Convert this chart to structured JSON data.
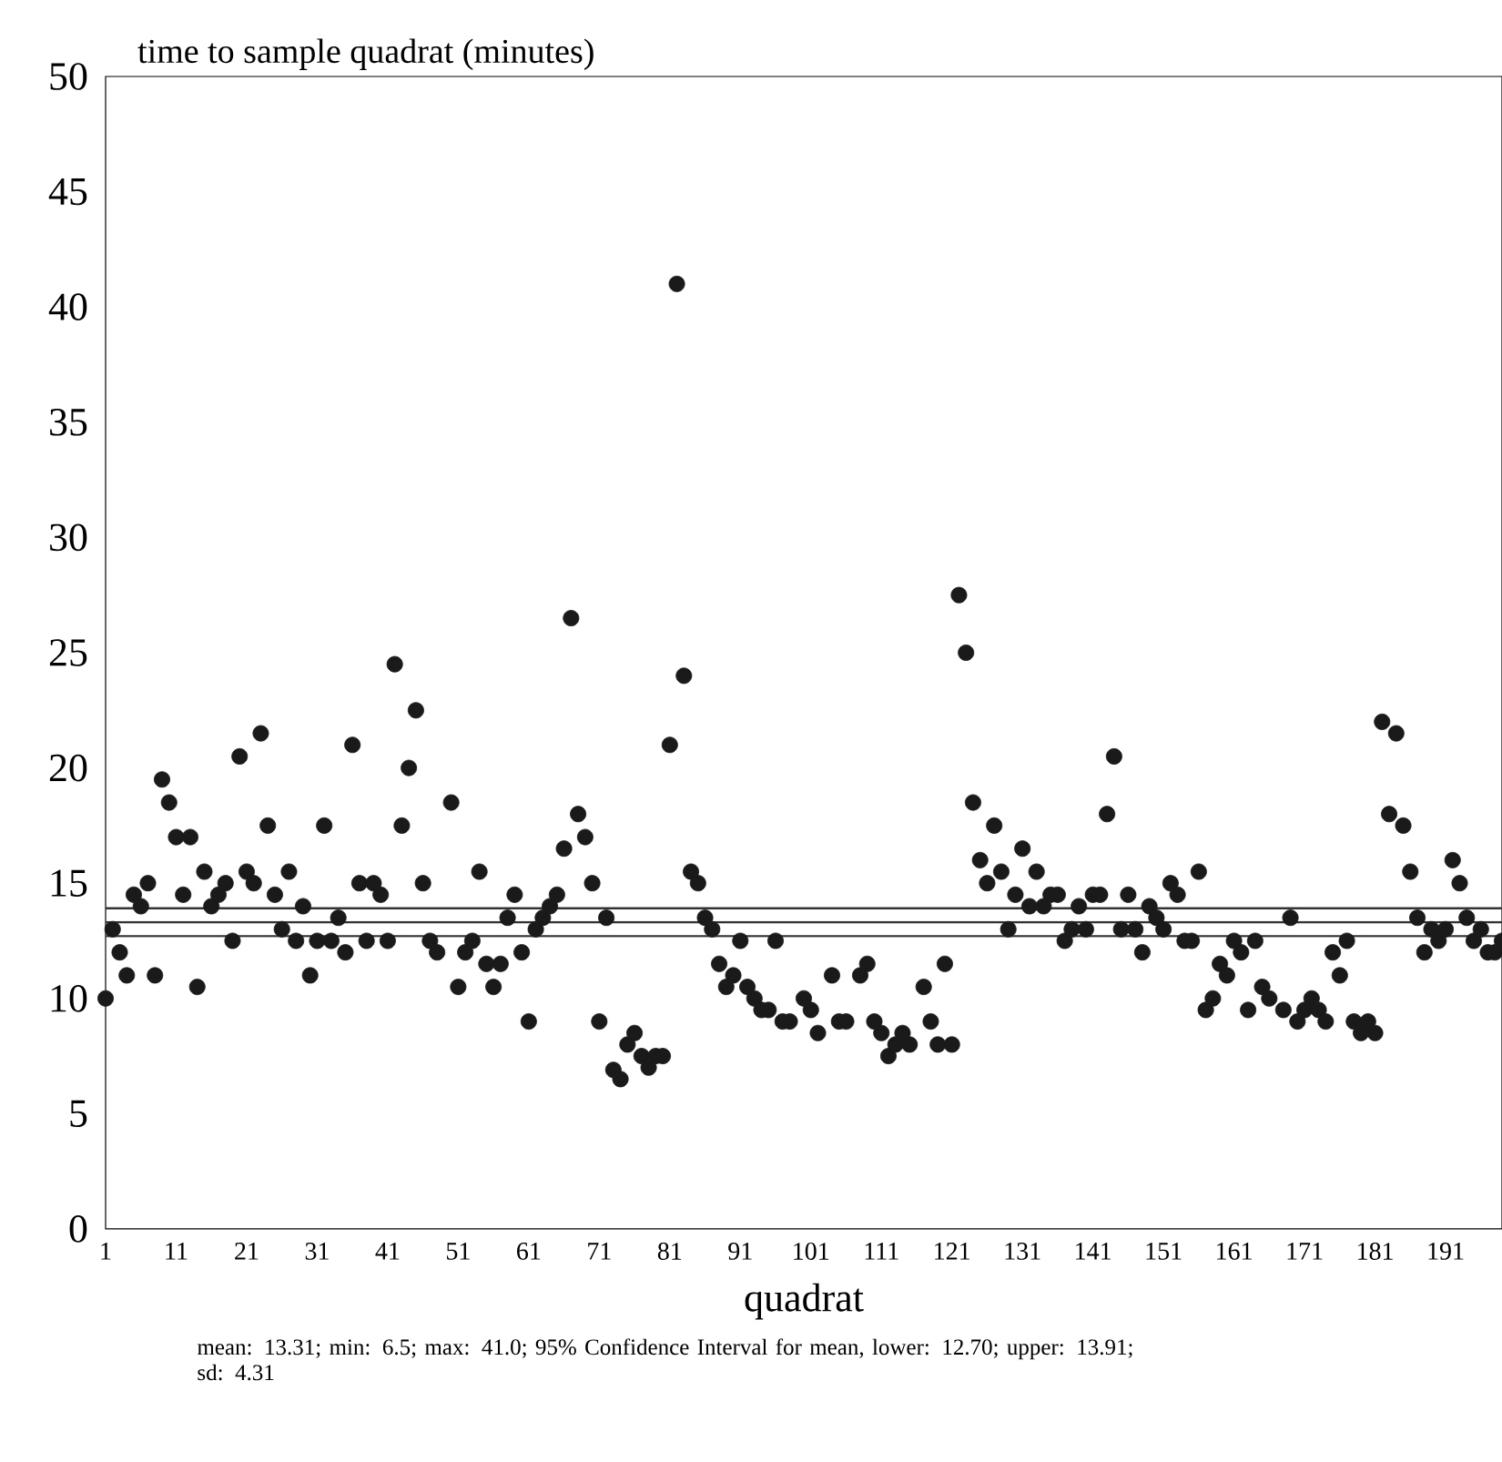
{
  "chart_data": {
    "type": "scatter",
    "ylabel": "time to sample quadrat (minutes)",
    "xlabel": "quadrat",
    "annotations": [
      "mean: 13.31; min: 6.5; max: 41.0; 95% Confidence Interval for mean, lower: 12.70; upper: 13.91; sd: 4.31"
    ],
    "xlim": [
      1,
      199
    ],
    "ylim": [
      0,
      50
    ],
    "xticks": [
      1,
      11,
      21,
      31,
      41,
      51,
      61,
      71,
      81,
      91,
      101,
      111,
      121,
      131,
      141,
      151,
      161,
      171,
      181,
      191
    ],
    "yticks": [
      0,
      5,
      10,
      15,
      20,
      25,
      30,
      35,
      40,
      45,
      50
    ],
    "marker": "circle",
    "ref_lines": [
      {
        "axis": "y",
        "value": 13.91,
        "color": "#333333"
      },
      {
        "axis": "y",
        "value": 13.31,
        "color": "#333333"
      },
      {
        "axis": "y",
        "value": 12.7,
        "color": "#333333"
      }
    ],
    "series": [
      {
        "color": "#1a1a1a",
        "x": [
          1,
          2,
          3,
          4,
          5,
          6,
          7,
          8,
          9,
          10,
          11,
          12,
          13,
          14,
          15,
          16,
          17,
          18,
          19,
          20,
          21,
          22,
          23,
          24,
          25,
          26,
          27,
          28,
          29,
          30,
          31,
          32,
          33,
          34,
          35,
          36,
          37,
          38,
          39,
          40,
          41,
          42,
          43,
          44,
          45,
          46,
          47,
          48,
          50,
          51,
          52,
          53,
          54,
          55,
          56,
          57,
          58,
          59,
          60,
          61,
          62,
          63,
          64,
          65,
          66,
          67,
          68,
          69,
          70,
          71,
          72,
          73,
          74,
          75,
          76,
          77,
          78,
          79,
          80,
          81,
          82,
          83,
          84,
          85,
          86,
          87,
          88,
          89,
          90,
          91,
          92,
          93,
          94,
          95,
          96,
          97,
          98,
          100,
          101,
          102,
          104,
          105,
          106,
          108,
          109,
          110,
          111,
          112,
          113,
          114,
          115,
          117,
          118,
          119,
          120,
          121,
          122,
          123,
          124,
          125,
          126,
          127,
          128,
          129,
          130,
          131,
          132,
          133,
          134,
          135,
          136,
          137,
          138,
          139,
          140,
          141,
          142,
          143,
          144,
          145,
          146,
          147,
          148,
          149,
          150,
          151,
          152,
          153,
          154,
          155,
          156,
          157,
          158,
          159,
          160,
          161,
          162,
          163,
          164,
          165,
          166,
          168,
          169,
          170,
          171,
          172,
          173,
          174,
          175,
          176,
          177,
          178,
          179,
          180,
          181,
          182,
          183,
          184,
          185,
          186,
          187,
          188,
          189,
          190,
          191,
          192,
          193,
          194,
          195,
          196,
          197,
          198,
          199
        ],
        "values": [
          10,
          13,
          12,
          11,
          14.5,
          14,
          15,
          11,
          19.5,
          18.5,
          17,
          14.5,
          17,
          10.5,
          15.5,
          14,
          14.5,
          15,
          12.5,
          20.5,
          15.5,
          15,
          21.5,
          17.5,
          14.5,
          13,
          15.5,
          12.5,
          14,
          11,
          12.5,
          17.5,
          12.5,
          13.5,
          12,
          21,
          15,
          12.5,
          15,
          14.5,
          12.5,
          24.5,
          17.5,
          20,
          22.5,
          15,
          12.5,
          12,
          18.5,
          10.5,
          12,
          12.5,
          15.5,
          11.5,
          10.5,
          11.5,
          13.5,
          14.5,
          12,
          9,
          13,
          13.5,
          14,
          14.5,
          16.5,
          26.5,
          18,
          17,
          15,
          9,
          13.5,
          6.9,
          6.5,
          8,
          8.5,
          7.5,
          7,
          7.5,
          7.5,
          21,
          41,
          24,
          15.5,
          15,
          13.5,
          13,
          11.5,
          10.5,
          11,
          12.5,
          10.5,
          10,
          9.5,
          9.5,
          12.5,
          9,
          9,
          10,
          9.5,
          8.5,
          11,
          9,
          9,
          11,
          11.5,
          9,
          8.5,
          7.5,
          8,
          8.5,
          8,
          10.5,
          9,
          8,
          11.5,
          8,
          27.5,
          25,
          18.5,
          16,
          15,
          17.5,
          15.5,
          13,
          14.5,
          16.5,
          14,
          15.5,
          14,
          14.5,
          14.5,
          12.5,
          13,
          14,
          13,
          14.5,
          14.5,
          18,
          20.5,
          13,
          14.5,
          13,
          12,
          14,
          13.5,
          13,
          15,
          14.5,
          12.5,
          12.5,
          15.5,
          9.5,
          10,
          11.5,
          11,
          12.5,
          12,
          9.5,
          12.5,
          10.5,
          10,
          9.5,
          13.5,
          9,
          9.5,
          10,
          9.5,
          9,
          12,
          11,
          12.5,
          9,
          8.5,
          9,
          8.5,
          22,
          18,
          21.5,
          17.5,
          15.5,
          13.5,
          12,
          13,
          12.5,
          13,
          16,
          15,
          13.5,
          12.5,
          13,
          12,
          12,
          12.5
        ]
      }
    ]
  }
}
